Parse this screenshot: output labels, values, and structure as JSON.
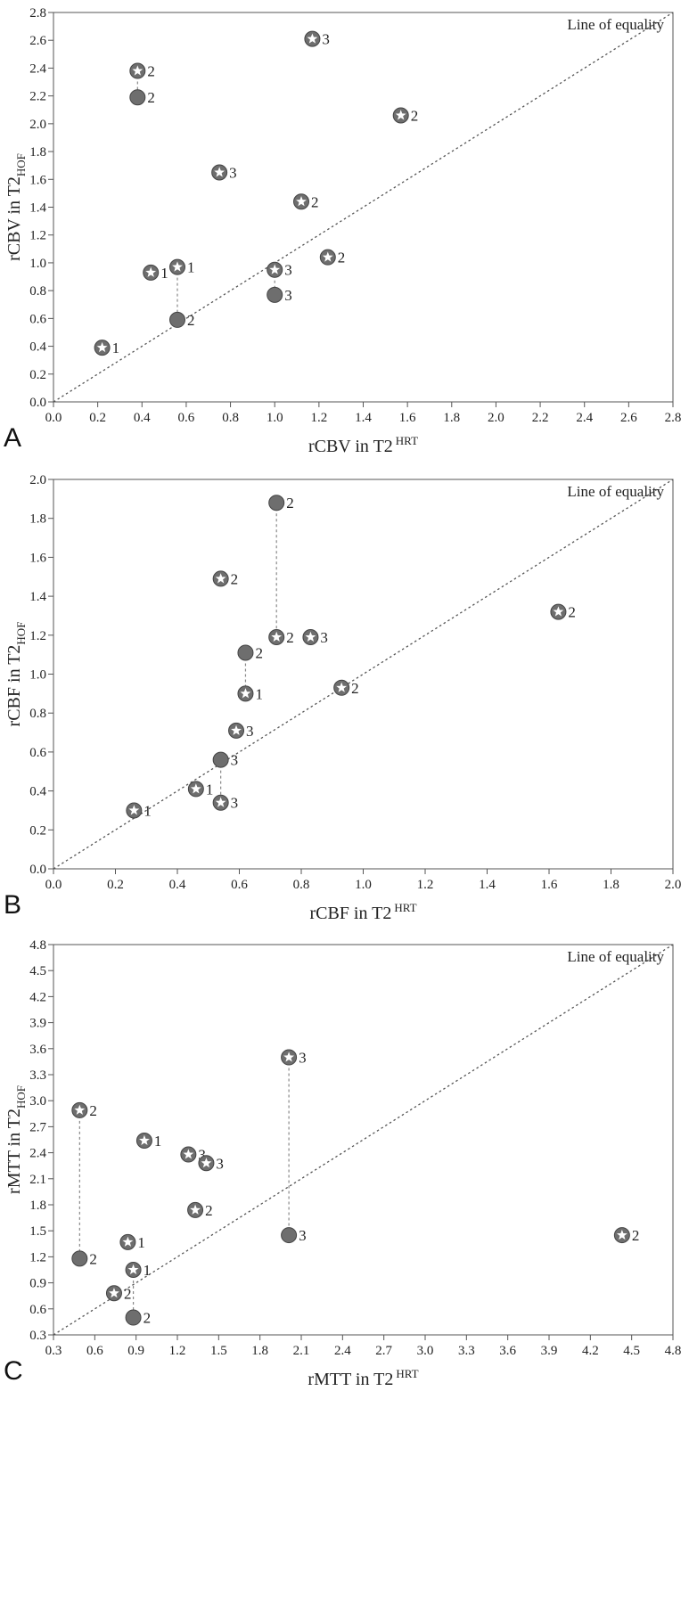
{
  "chart_data": [
    {
      "panel_label": "A",
      "type": "scatter",
      "xlabel": "rCBV in T2",
      "xlabel_sup": "HRT",
      "ylabel": "rCBV in T2",
      "ylabel_sub": "HOF",
      "xlim": [
        0,
        2.8
      ],
      "ylim": [
        0,
        2.8
      ],
      "xticks": [
        "0.0",
        "0.2",
        "0.4",
        "0.6",
        "0.8",
        "1.0",
        "1.2",
        "1.4",
        "1.6",
        "1.8",
        "2.0",
        "2.2",
        "2.4",
        "2.6",
        "2.8"
      ],
      "yticks": [
        "0.0",
        "0.2",
        "0.4",
        "0.6",
        "0.8",
        "1.0",
        "1.2",
        "1.4",
        "1.6",
        "1.8",
        "2.0",
        "2.2",
        "2.4",
        "2.6",
        "2.8"
      ],
      "reference_line": "Line of equality",
      "points": [
        {
          "x": 0.38,
          "y": 2.38,
          "marker": "star",
          "label": "2"
        },
        {
          "x": 0.38,
          "y": 2.19,
          "marker": "dot",
          "label": "2"
        },
        {
          "x": 1.17,
          "y": 2.61,
          "marker": "star",
          "label": "3"
        },
        {
          "x": 1.57,
          "y": 2.06,
          "marker": "star",
          "label": "2"
        },
        {
          "x": 0.75,
          "y": 1.65,
          "marker": "star",
          "label": "3"
        },
        {
          "x": 1.12,
          "y": 1.44,
          "marker": "star",
          "label": "2"
        },
        {
          "x": 1.24,
          "y": 1.04,
          "marker": "star",
          "label": "2"
        },
        {
          "x": 0.44,
          "y": 0.93,
          "marker": "star",
          "label": "1"
        },
        {
          "x": 0.56,
          "y": 0.97,
          "marker": "star",
          "label": "1"
        },
        {
          "x": 1.0,
          "y": 0.95,
          "marker": "star",
          "label": "3"
        },
        {
          "x": 1.0,
          "y": 0.77,
          "marker": "dot",
          "label": "3"
        },
        {
          "x": 0.56,
          "y": 0.59,
          "marker": "dot",
          "label": "2"
        },
        {
          "x": 0.22,
          "y": 0.39,
          "marker": "star",
          "label": "1"
        }
      ],
      "connectors": [
        [
          0.38,
          2.38,
          0.38,
          2.19
        ],
        [
          0.56,
          0.97,
          0.56,
          0.59
        ],
        [
          1.0,
          0.95,
          1.0,
          0.77
        ]
      ]
    },
    {
      "panel_label": "B",
      "type": "scatter",
      "xlabel": "rCBF in T2",
      "xlabel_sup": "HRT",
      "ylabel": "rCBF in T2",
      "ylabel_sub": "HOF",
      "xlim": [
        0,
        2.0
      ],
      "ylim": [
        0,
        2.0
      ],
      "xticks": [
        "0.0",
        "0.2",
        "0.4",
        "0.6",
        "0.8",
        "1.0",
        "1.2",
        "1.4",
        "1.6",
        "1.8",
        "2.0"
      ],
      "yticks": [
        "0.0",
        "0.2",
        "0.4",
        "0.6",
        "0.8",
        "1.0",
        "1.2",
        "1.4",
        "1.6",
        "1.8",
        "2.0"
      ],
      "reference_line": "Line of equality",
      "points": [
        {
          "x": 0.72,
          "y": 1.88,
          "marker": "dot",
          "label": "2"
        },
        {
          "x": 0.54,
          "y": 1.49,
          "marker": "star",
          "label": "2"
        },
        {
          "x": 1.63,
          "y": 1.32,
          "marker": "star",
          "label": "2"
        },
        {
          "x": 0.72,
          "y": 1.19,
          "marker": "star",
          "label": "2"
        },
        {
          "x": 0.83,
          "y": 1.19,
          "marker": "star",
          "label": "3"
        },
        {
          "x": 0.62,
          "y": 1.11,
          "marker": "dot",
          "label": "2"
        },
        {
          "x": 0.93,
          "y": 0.93,
          "marker": "star",
          "label": "2"
        },
        {
          "x": 0.62,
          "y": 0.9,
          "marker": "star",
          "label": "1"
        },
        {
          "x": 0.59,
          "y": 0.71,
          "marker": "star",
          "label": "3"
        },
        {
          "x": 0.54,
          "y": 0.56,
          "marker": "dot",
          "label": "3"
        },
        {
          "x": 0.46,
          "y": 0.41,
          "marker": "star",
          "label": "1"
        },
        {
          "x": 0.54,
          "y": 0.34,
          "marker": "star",
          "label": "3"
        },
        {
          "x": 0.26,
          "y": 0.3,
          "marker": "star",
          "label": "1"
        }
      ],
      "connectors": [
        [
          0.72,
          1.88,
          0.72,
          1.19
        ],
        [
          0.62,
          1.11,
          0.62,
          0.9
        ],
        [
          0.54,
          0.56,
          0.54,
          0.34
        ]
      ]
    },
    {
      "panel_label": "C",
      "type": "scatter",
      "xlabel": "rMTT in T2",
      "xlabel_sup": "HRT",
      "ylabel": "rMTT in T2",
      "ylabel_sub": "HOF",
      "xlim": [
        0.3,
        4.8
      ],
      "ylim": [
        0.3,
        4.8
      ],
      "xticks": [
        "0.3",
        "0.6",
        "0.9",
        "1.2",
        "1.5",
        "1.8",
        "2.1",
        "2.4",
        "2.7",
        "3.0",
        "3.3",
        "3.6",
        "3.9",
        "4.2",
        "4.5",
        "4.8"
      ],
      "yticks": [
        "0.3",
        "0.6",
        "0.9",
        "1.2",
        "1.5",
        "1.8",
        "2.1",
        "2.4",
        "2.7",
        "3.0",
        "3.3",
        "3.6",
        "3.9",
        "4.2",
        "4.5",
        "4.8"
      ],
      "reference_line": "Line of equality",
      "points": [
        {
          "x": 2.01,
          "y": 3.5,
          "marker": "star",
          "label": "3"
        },
        {
          "x": 0.49,
          "y": 2.89,
          "marker": "star",
          "label": "2"
        },
        {
          "x": 0.96,
          "y": 2.54,
          "marker": "star",
          "label": "1"
        },
        {
          "x": 1.28,
          "y": 2.38,
          "marker": "star",
          "label": "3"
        },
        {
          "x": 1.41,
          "y": 2.28,
          "marker": "star",
          "label": "3"
        },
        {
          "x": 1.33,
          "y": 1.74,
          "marker": "star",
          "label": "2"
        },
        {
          "x": 4.43,
          "y": 1.45,
          "marker": "star",
          "label": "2"
        },
        {
          "x": 2.01,
          "y": 1.45,
          "marker": "dot",
          "label": "3"
        },
        {
          "x": 0.84,
          "y": 1.37,
          "marker": "star",
          "label": "1"
        },
        {
          "x": 0.49,
          "y": 1.18,
          "marker": "dot",
          "label": "2"
        },
        {
          "x": 0.88,
          "y": 1.05,
          "marker": "star",
          "label": "1"
        },
        {
          "x": 0.74,
          "y": 0.78,
          "marker": "star",
          "label": "2"
        },
        {
          "x": 0.88,
          "y": 0.5,
          "marker": "dot",
          "label": "2"
        }
      ],
      "connectors": [
        [
          2.01,
          3.5,
          2.01,
          1.45
        ],
        [
          0.49,
          2.89,
          0.49,
          1.18
        ],
        [
          0.88,
          1.05,
          0.88,
          0.5
        ]
      ]
    }
  ]
}
